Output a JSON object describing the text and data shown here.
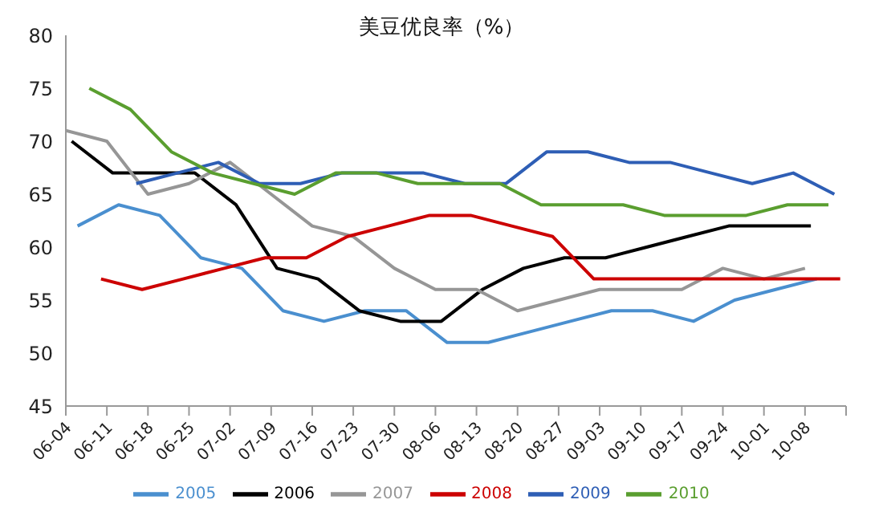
{
  "chart_data": {
    "type": "line",
    "title": "美豆优良率（%）",
    "xlim": [
      "--06-04",
      "--10-15"
    ],
    "xticks": [
      {
        "value": "--06-04",
        "label": "06-04"
      },
      {
        "value": "--06-11",
        "label": "06-11"
      },
      {
        "value": "--06-18",
        "label": "06-18"
      },
      {
        "value": "--06-25",
        "label": "06-25"
      },
      {
        "value": "--07-02",
        "label": "07-02"
      },
      {
        "value": "--07-09",
        "label": "07-09"
      },
      {
        "value": "--07-16",
        "label": "07-16"
      },
      {
        "value": "--07-23",
        "label": "07-23"
      },
      {
        "value": "--07-30",
        "label": "07-30"
      },
      {
        "value": "--08-06",
        "label": "08-06"
      },
      {
        "value": "--08-13",
        "label": "08-13"
      },
      {
        "value": "--08-20",
        "label": "08-20"
      },
      {
        "value": "--08-27",
        "label": "08-27"
      },
      {
        "value": "--09-03",
        "label": "09-03"
      },
      {
        "value": "--09-10",
        "label": "09-10"
      },
      {
        "value": "--09-17",
        "label": "09-17"
      },
      {
        "value": "--09-24",
        "label": "09-24"
      },
      {
        "value": "--10-01",
        "label": "10-01"
      },
      {
        "value": "--10-08",
        "label": "10-08"
      },
      {
        "value": "--10-15",
        "label": null
      }
    ],
    "ylim": [
      45,
      80
    ],
    "yticks": [
      45,
      50,
      55,
      60,
      65,
      70,
      75,
      80
    ],
    "grid": false,
    "legend": "bottom",
    "marker": "none",
    "line_style": "solid",
    "series": [
      {
        "name": "2005",
        "color": "#4a8fcf",
        "x": [
          "--06-06",
          "--06-13",
          "--06-20",
          "--06-27",
          "--07-04",
          "--07-11",
          "--07-18",
          "--07-25",
          "--08-01",
          "--08-08",
          "--08-15",
          "--08-22",
          "--08-29",
          "--09-05",
          "--09-12",
          "--09-19",
          "--09-26",
          "--10-03",
          "--10-10"
        ],
        "values": [
          62,
          64,
          63,
          59,
          58,
          54,
          53,
          54,
          54,
          51,
          51,
          52,
          53,
          54,
          54,
          53,
          55,
          56,
          57
        ]
      },
      {
        "name": "2006",
        "color": "#000000",
        "x": [
          "--06-05",
          "--06-12",
          "--06-19",
          "--06-26",
          "--07-03",
          "--07-10",
          "--07-17",
          "--07-24",
          "--07-31",
          "--08-07",
          "--08-14",
          "--08-21",
          "--08-28",
          "--09-04",
          "--09-11",
          "--09-18",
          "--09-25",
          "--10-02",
          "--10-09"
        ],
        "values": [
          70,
          67,
          67,
          67,
          64,
          58,
          57,
          54,
          53,
          53,
          56,
          58,
          59,
          59,
          60,
          61,
          62,
          62,
          62
        ]
      },
      {
        "name": "2007",
        "color": "#969696",
        "x": [
          "--06-04",
          "--06-11",
          "--06-18",
          "--06-25",
          "--07-02",
          "--07-09",
          "--07-16",
          "--07-23",
          "--07-30",
          "--08-06",
          "--08-13",
          "--08-20",
          "--08-27",
          "--09-03",
          "--09-10",
          "--09-17",
          "--09-24",
          "--10-01",
          "--10-08"
        ],
        "values": [
          71,
          70,
          65,
          66,
          68,
          65,
          62,
          61,
          58,
          56,
          56,
          54,
          55,
          56,
          56,
          56,
          58,
          57,
          58
        ]
      },
      {
        "name": "2008",
        "color": "#cc0000",
        "x": [
          "--06-10",
          "--06-17",
          "--06-24",
          "--07-01",
          "--07-08",
          "--07-15",
          "--07-22",
          "--07-29",
          "--08-05",
          "--08-12",
          "--08-19",
          "--08-26",
          "--09-02",
          "--09-09",
          "--09-16",
          "--09-23",
          "--09-30",
          "--10-07",
          "--10-14"
        ],
        "values": [
          57,
          56,
          57,
          58,
          59,
          59,
          61,
          62,
          63,
          63,
          62,
          61,
          57,
          57,
          57,
          57,
          57,
          57,
          57
        ]
      },
      {
        "name": "2009",
        "color": "#2e5eb5",
        "x": [
          "--06-16",
          "--06-23",
          "--06-30",
          "--07-07",
          "--07-14",
          "--07-21",
          "--07-28",
          "--08-04",
          "--08-11",
          "--08-18",
          "--08-25",
          "--09-01",
          "--09-08",
          "--09-15",
          "--09-22",
          "--09-29",
          "--10-06",
          "--10-13"
        ],
        "values": [
          66,
          67,
          68,
          66,
          66,
          67,
          67,
          67,
          66,
          66,
          69,
          69,
          68,
          68,
          67,
          66,
          67,
          65
        ]
      },
      {
        "name": "2010",
        "color": "#5a9e2f",
        "x": [
          "--06-08",
          "--06-15",
          "--06-22",
          "--06-29",
          "--07-06",
          "--07-13",
          "--07-20",
          "--07-27",
          "--08-03",
          "--08-10",
          "--08-17",
          "--08-24",
          "--08-31",
          "--09-07",
          "--09-14",
          "--09-21",
          "--09-28",
          "--10-05",
          "--10-12"
        ],
        "values": [
          75,
          73,
          69,
          67,
          66,
          65,
          67,
          67,
          66,
          66,
          66,
          64,
          64,
          64,
          63,
          63,
          63,
          64,
          64
        ]
      }
    ]
  }
}
